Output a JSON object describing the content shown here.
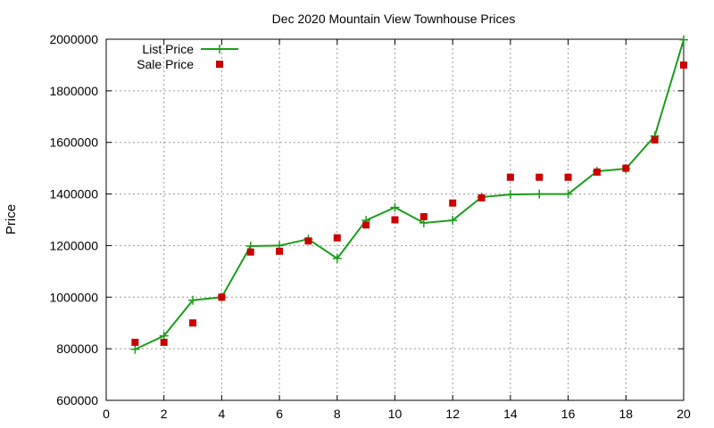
{
  "chart_data": {
    "type": "line",
    "title": "Dec 2020 Mountain View Townhouse Prices",
    "xlabel": "",
    "ylabel": "Price",
    "xlim": [
      0,
      20
    ],
    "ylim": [
      600000,
      2000000
    ],
    "xticks": [
      0,
      2,
      4,
      6,
      8,
      10,
      12,
      14,
      16,
      18,
      20
    ],
    "yticks": [
      600000,
      800000,
      1000000,
      1200000,
      1400000,
      1600000,
      1800000,
      2000000
    ],
    "grid": true,
    "legend_position": "top-left",
    "series": [
      {
        "name": "List Price",
        "style": "line-with-plus-markers",
        "color": "#1a9e1a",
        "x": [
          1,
          2,
          3,
          4,
          5,
          6,
          7,
          8,
          9,
          10,
          11,
          12,
          13,
          14,
          15,
          16,
          17,
          18,
          19,
          20
        ],
        "y": [
          798000,
          850000,
          988000,
          1000000,
          1198000,
          1200000,
          1225000,
          1150000,
          1298000,
          1348000,
          1288000,
          1298000,
          1388000,
          1398000,
          1400000,
          1400000,
          1488000,
          1498000,
          1625000,
          1998000
        ]
      },
      {
        "name": "Sale Price",
        "style": "square-markers",
        "color": "#cc0000",
        "x": [
          1,
          2,
          3,
          4,
          5,
          6,
          7,
          8,
          9,
          10,
          11,
          12,
          13,
          14,
          15,
          16,
          17,
          18,
          19,
          20
        ],
        "y": [
          825000,
          825000,
          900000,
          1000000,
          1175000,
          1178000,
          1218000,
          1230000,
          1280000,
          1300000,
          1312000,
          1365000,
          1385000,
          1465000,
          1465000,
          1465000,
          1485000,
          1500000,
          1610000,
          1900000
        ]
      }
    ]
  }
}
